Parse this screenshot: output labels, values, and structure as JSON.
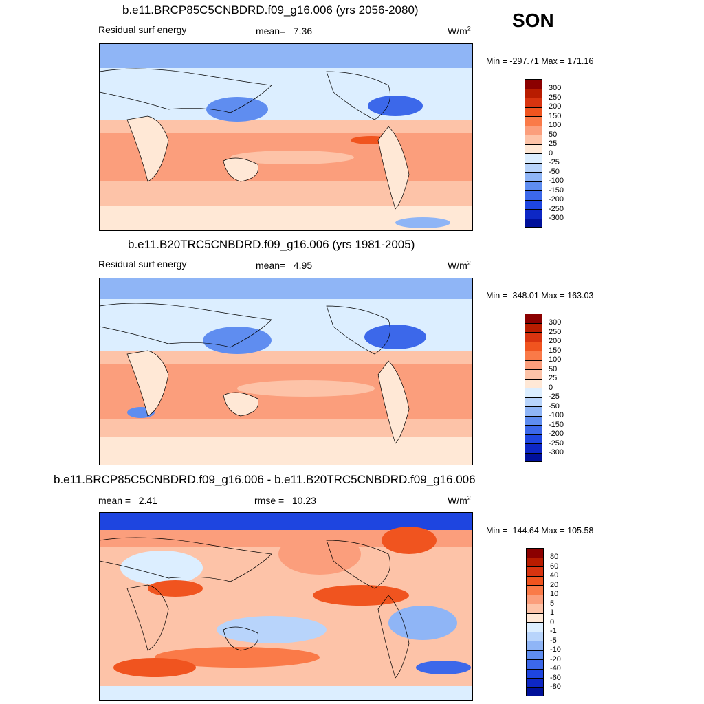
{
  "season": "SON",
  "panels": [
    {
      "title": "b.e11.BRCP85C5CNBDRD.f09_g16.006 (yrs 2056-2080)",
      "variable": "Residual surf energy",
      "stats": [
        {
          "label": "mean=",
          "value": "7.36"
        }
      ],
      "units": "W/m",
      "units_exp": "2",
      "minmax": "Min = -297.71 Max = 171.16",
      "colorbar": {
        "colors": [
          "#8b0000",
          "#b81c00",
          "#d83410",
          "#f0541f",
          "#fa7a48",
          "#fb9e7c",
          "#fdc3a8",
          "#ffe8d6",
          "#dceeff",
          "#b8d4fb",
          "#8fb5f6",
          "#5f8df0",
          "#3c68ea",
          "#1e45e0",
          "#0d27c5",
          "#00109a"
        ],
        "labels": [
          "300",
          "250",
          "200",
          "150",
          "100",
          "50",
          "25",
          "0",
          "-25",
          "-50",
          "-100",
          "-150",
          "-200",
          "-250",
          "-300"
        ]
      }
    },
    {
      "title": "b.e11.B20TRC5CNBDRD.f09_g16.006 (yrs 1981-2005)",
      "variable": "Residual surf energy",
      "stats": [
        {
          "label": "mean=",
          "value": "4.95"
        }
      ],
      "units": "W/m",
      "units_exp": "2",
      "minmax": "Min = -348.01 Max = 163.03",
      "colorbar": {
        "colors": [
          "#8b0000",
          "#b81c00",
          "#d83410",
          "#f0541f",
          "#fa7a48",
          "#fb9e7c",
          "#fdc3a8",
          "#ffe8d6",
          "#dceeff",
          "#b8d4fb",
          "#8fb5f6",
          "#5f8df0",
          "#3c68ea",
          "#1e45e0",
          "#0d27c5",
          "#00109a"
        ],
        "labels": [
          "300",
          "250",
          "200",
          "150",
          "100",
          "50",
          "25",
          "0",
          "-25",
          "-50",
          "-100",
          "-150",
          "-200",
          "-250",
          "-300"
        ]
      }
    },
    {
      "title": "b.e11.BRCP85C5CNBDRD.f09_g16.006 - b.e11.B20TRC5CNBDRD.f09_g16.006",
      "variable": "",
      "stats": [
        {
          "label": "mean =",
          "value": "2.41"
        },
        {
          "label": "rmse =",
          "value": "10.23"
        }
      ],
      "units": "W/m",
      "units_exp": "2",
      "minmax": "Min = -144.64 Max = 105.58",
      "colorbar": {
        "colors": [
          "#8b0000",
          "#b81c00",
          "#d83410",
          "#f0541f",
          "#fa7a48",
          "#fb9e7c",
          "#fdc3a8",
          "#ffe8d6",
          "#dceeff",
          "#b8d4fb",
          "#8fb5f6",
          "#5f8df0",
          "#3c68ea",
          "#1e45e0",
          "#0d27c5",
          "#00109a"
        ],
        "labels": [
          "80",
          "60",
          "40",
          "20",
          "10",
          "5",
          "1",
          "0",
          "-1",
          "-5",
          "-10",
          "-20",
          "-40",
          "-60",
          "-80"
        ]
      }
    }
  ]
}
